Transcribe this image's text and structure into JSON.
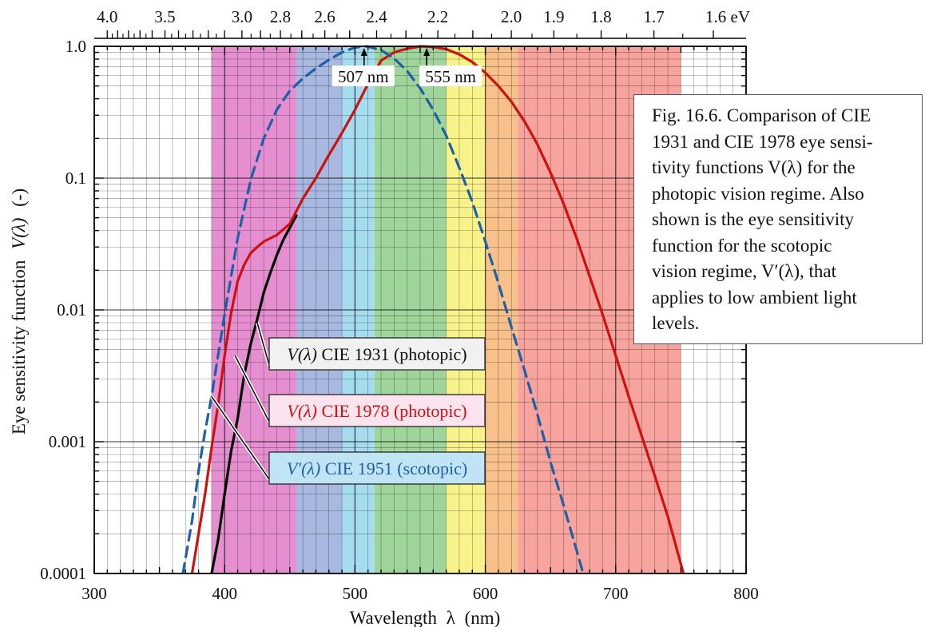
{
  "chart_data": {
    "type": "line",
    "y_scale": "log",
    "x_unit_axis_label": "Wavelength",
    "xlabel_symbol": "λ",
    "xlabel_unit": "(nm)",
    "ylabel_prefix": "Eye sensitivity function",
    "ylabel_symbol": "V(λ)",
    "ylabel_unit": "(-)",
    "xlim": [
      300,
      800
    ],
    "ylim": [
      0.0001,
      1.0
    ],
    "x_ticks": [
      {
        "value": 300,
        "label": "300"
      },
      {
        "value": 400,
        "label": "400"
      },
      {
        "value": 500,
        "label": "500"
      },
      {
        "value": 600,
        "label": "600"
      },
      {
        "value": 700,
        "label": "700"
      },
      {
        "value": 800,
        "label": "800"
      }
    ],
    "y_ticks": [
      {
        "value": 0.0001,
        "label": "0.0001"
      },
      {
        "value": 0.001,
        "label": "0.001"
      },
      {
        "value": 0.01,
        "label": "0.01"
      },
      {
        "value": 0.1,
        "label": "0.1"
      },
      {
        "value": 1.0,
        "label": "1.0"
      }
    ],
    "top_axis": {
      "quantity": "photon energy",
      "unit": "eV",
      "labels": [
        {
          "value": 4.0,
          "label": "4.0"
        },
        {
          "value": 3.5,
          "label": "3.5"
        },
        {
          "value": 3.0,
          "label": "3.0"
        },
        {
          "value": 2.8,
          "label": "2.8"
        },
        {
          "value": 2.6,
          "label": "2.6"
        },
        {
          "value": 2.4,
          "label": "2.4"
        },
        {
          "value": 2.2,
          "label": "2.2"
        },
        {
          "value": 2.0,
          "label": "2.0"
        },
        {
          "value": 1.9,
          "label": "1.9"
        },
        {
          "value": 1.8,
          "label": "1.8"
        },
        {
          "value": 1.7,
          "label": "1.7"
        },
        {
          "value": 1.6,
          "label": "1.6 eV"
        }
      ]
    },
    "color_bands": [
      {
        "from": 390,
        "to": 455,
        "color": "#e58fd0"
      },
      {
        "from": 455,
        "to": 490,
        "color": "#a9b8e0"
      },
      {
        "from": 490,
        "to": 515,
        "color": "#a6dcef"
      },
      {
        "from": 515,
        "to": 570,
        "color": "#9fd49b"
      },
      {
        "from": 570,
        "to": 600,
        "color": "#f7f38a"
      },
      {
        "from": 600,
        "to": 625,
        "color": "#f8c08a"
      },
      {
        "from": 625,
        "to": 750,
        "color": "#f7a39e"
      }
    ],
    "series": [
      {
        "name": "V(λ) CIE 1931 (photopic)",
        "color": "#000000",
        "style": "solid",
        "x": [
          390,
          395,
          400,
          405,
          410,
          415,
          420,
          425,
          430,
          435,
          440,
          445,
          450,
          455
        ],
        "y": [
          0.0001,
          0.00018,
          0.0004,
          0.00085,
          0.0015,
          0.0032,
          0.0055,
          0.0085,
          0.0135,
          0.019,
          0.026,
          0.034,
          0.042,
          0.052
        ]
      },
      {
        "name": "V(λ) CIE 1978 (photopic)",
        "color": "#cc1111",
        "style": "solid",
        "x": [
          375,
          380,
          385,
          390,
          395,
          400,
          405,
          410,
          415,
          420,
          425,
          430,
          440,
          450,
          460,
          470,
          480,
          490,
          500,
          510,
          520,
          530,
          540,
          550,
          560,
          570,
          580,
          590,
          600,
          610,
          620,
          630,
          640,
          650,
          660,
          670,
          680,
          690,
          700,
          710,
          720,
          730,
          740,
          752
        ],
        "y": [
          0.0001,
          0.0002,
          0.0004,
          0.0009,
          0.0019,
          0.0045,
          0.0095,
          0.0165,
          0.022,
          0.027,
          0.03,
          0.033,
          0.037,
          0.045,
          0.07,
          0.1,
          0.15,
          0.22,
          0.33,
          0.52,
          0.78,
          0.9,
          0.96,
          1.0,
          0.99,
          0.95,
          0.87,
          0.76,
          0.63,
          0.5,
          0.38,
          0.27,
          0.18,
          0.11,
          0.064,
          0.035,
          0.018,
          0.0092,
          0.0045,
          0.0022,
          0.0011,
          0.00055,
          0.00027,
          0.0001
        ]
      },
      {
        "name": "V′(λ) CIE 1951 (scotopic)",
        "color": "#1f5fa8",
        "style": "dashed",
        "x": [
          368,
          375,
          380,
          385,
          390,
          400,
          410,
          420,
          430,
          440,
          450,
          460,
          470,
          480,
          490,
          500,
          507,
          510,
          520,
          530,
          540,
          550,
          560,
          570,
          580,
          590,
          600,
          610,
          620,
          630,
          640,
          650,
          660,
          670,
          675
        ],
        "y": [
          0.0001,
          0.00025,
          0.0006,
          0.0012,
          0.0022,
          0.0093,
          0.035,
          0.097,
          0.2,
          0.33,
          0.46,
          0.57,
          0.68,
          0.79,
          0.9,
          0.98,
          1.0,
          0.997,
          0.935,
          0.81,
          0.65,
          0.48,
          0.33,
          0.21,
          0.12,
          0.066,
          0.033,
          0.016,
          0.0074,
          0.0035,
          0.0016,
          0.0007,
          0.00033,
          0.00015,
          0.0001
        ]
      }
    ],
    "peak_annotations": [
      {
        "x": 507,
        "label": "507 nm"
      },
      {
        "x": 555,
        "label": "555 nm"
      }
    ],
    "legend_boxes": [
      {
        "series": 0,
        "symbol": "V(λ)",
        "text": " CIE 1931 (photopic)",
        "background": "#f1f1f1",
        "text_color": "#111111",
        "point_to": {
          "x": 425,
          "y": 0.008
        }
      },
      {
        "series": 1,
        "symbol": "V(λ)",
        "text": " CIE 1978 (photopic)",
        "background": "#fce4ee",
        "text_color": "#cc1111",
        "point_to": {
          "x": 408,
          "y": 0.0045
        }
      },
      {
        "series": 2,
        "symbol": "V′(λ)",
        "text": " CIE 1951 (scotopic)",
        "background": "#bfe4f4",
        "text_color": "#1f5fa8",
        "point_to": {
          "x": 390,
          "y": 0.0022
        }
      }
    ],
    "grid": true,
    "legend_placement": "center-left inside plot"
  },
  "caption": {
    "lines": [
      "Fig. 16.6. Comparison of CIE",
      "1931 and CIE 1978 eye sensi-",
      "tivity functions V(λ) for the",
      "photopic vision regime. Also",
      "shown is the eye sensitivity",
      "function for the scotopic",
      "vision regime, V′(λ), that",
      "applies to low ambient light",
      "levels."
    ]
  }
}
